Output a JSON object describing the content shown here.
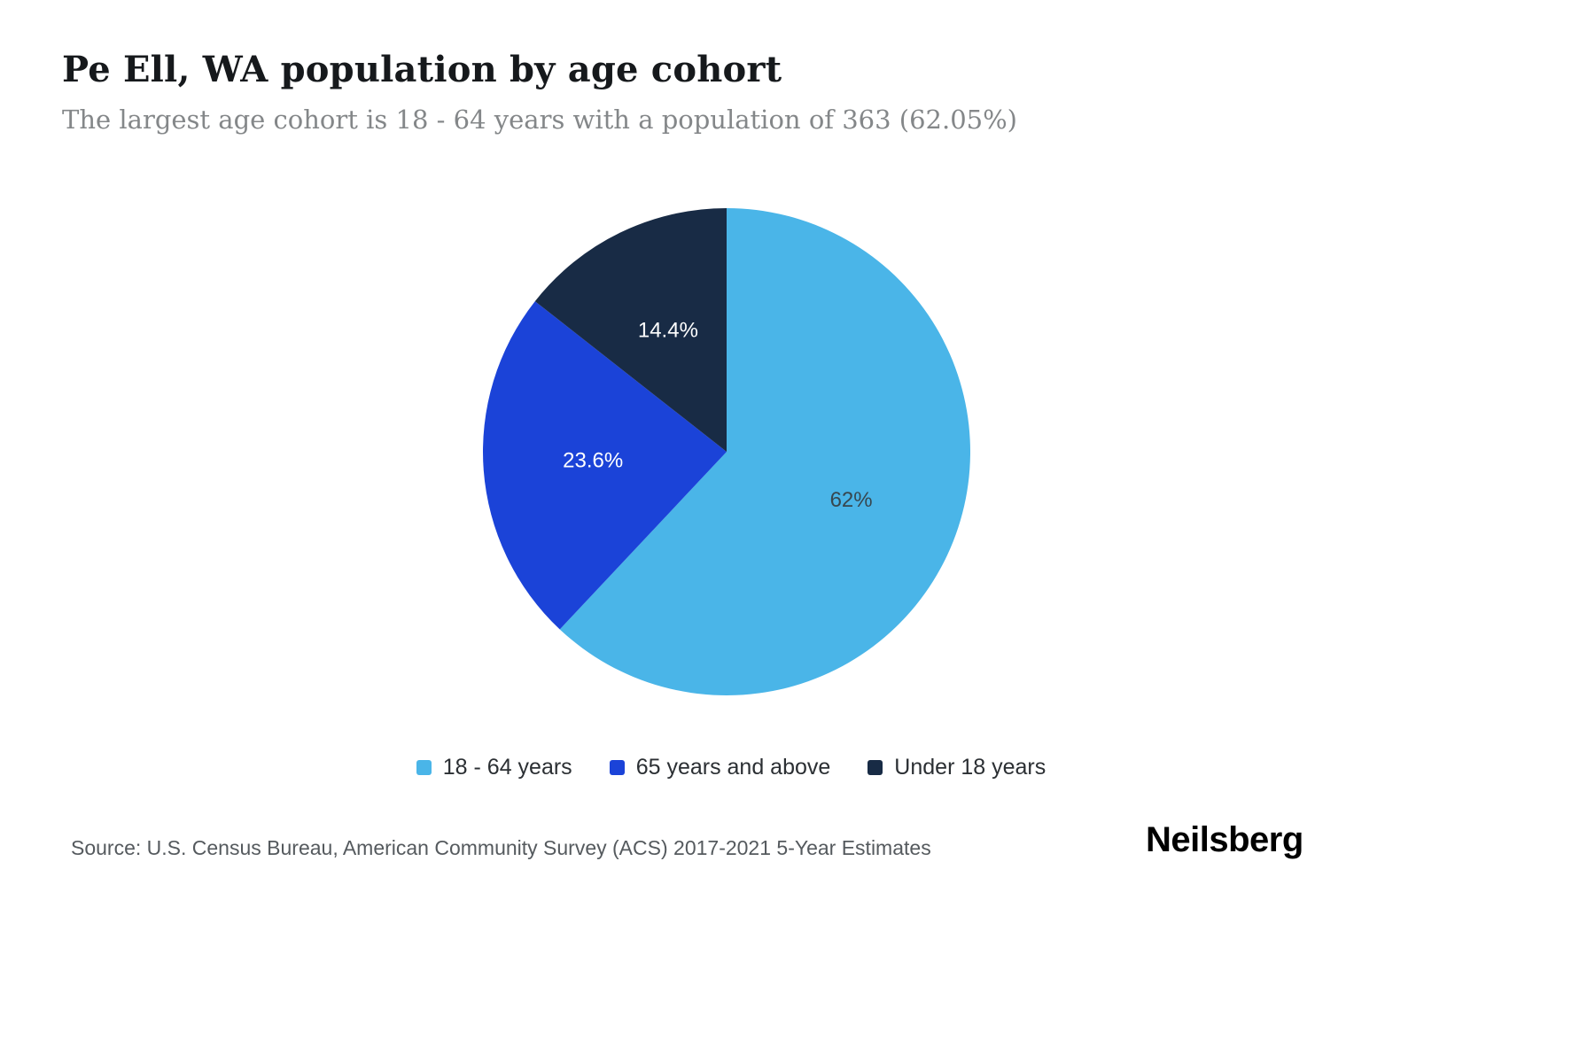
{
  "page": {
    "title": "Pe Ell, WA population by age cohort",
    "subtitle": "The largest age cohort is 18 - 64 years with a population of 363 (62.05%)",
    "source": "Source: U.S. Census Bureau, American Community Survey (ACS) 2017-2021 5-Year Estimates",
    "brand": "Neilsberg"
  },
  "chart_data": {
    "type": "pie",
    "title": "Pe Ell, WA population by age cohort",
    "subtitle": "The largest age cohort is 18 - 64 years with a population of 363 (62.05%)",
    "legend_position": "bottom",
    "start_angle_deg": 0,
    "direction": "clockwise",
    "largest_cohort": {
      "label": "18 - 64 years",
      "population": 363,
      "percent": 62.05
    },
    "slices": [
      {
        "label": "18 - 64 years",
        "value": 62.0,
        "display": "62%",
        "color": "#4ab5e8",
        "label_color": "#37474f"
      },
      {
        "label": "65 years and above",
        "value": 23.6,
        "display": "23.6%",
        "color": "#1b43d8",
        "label_color": "#ffffff"
      },
      {
        "label": "Under 18 years",
        "value": 14.4,
        "display": "14.4%",
        "color": "#182b45",
        "label_color": "#ffffff"
      }
    ]
  }
}
